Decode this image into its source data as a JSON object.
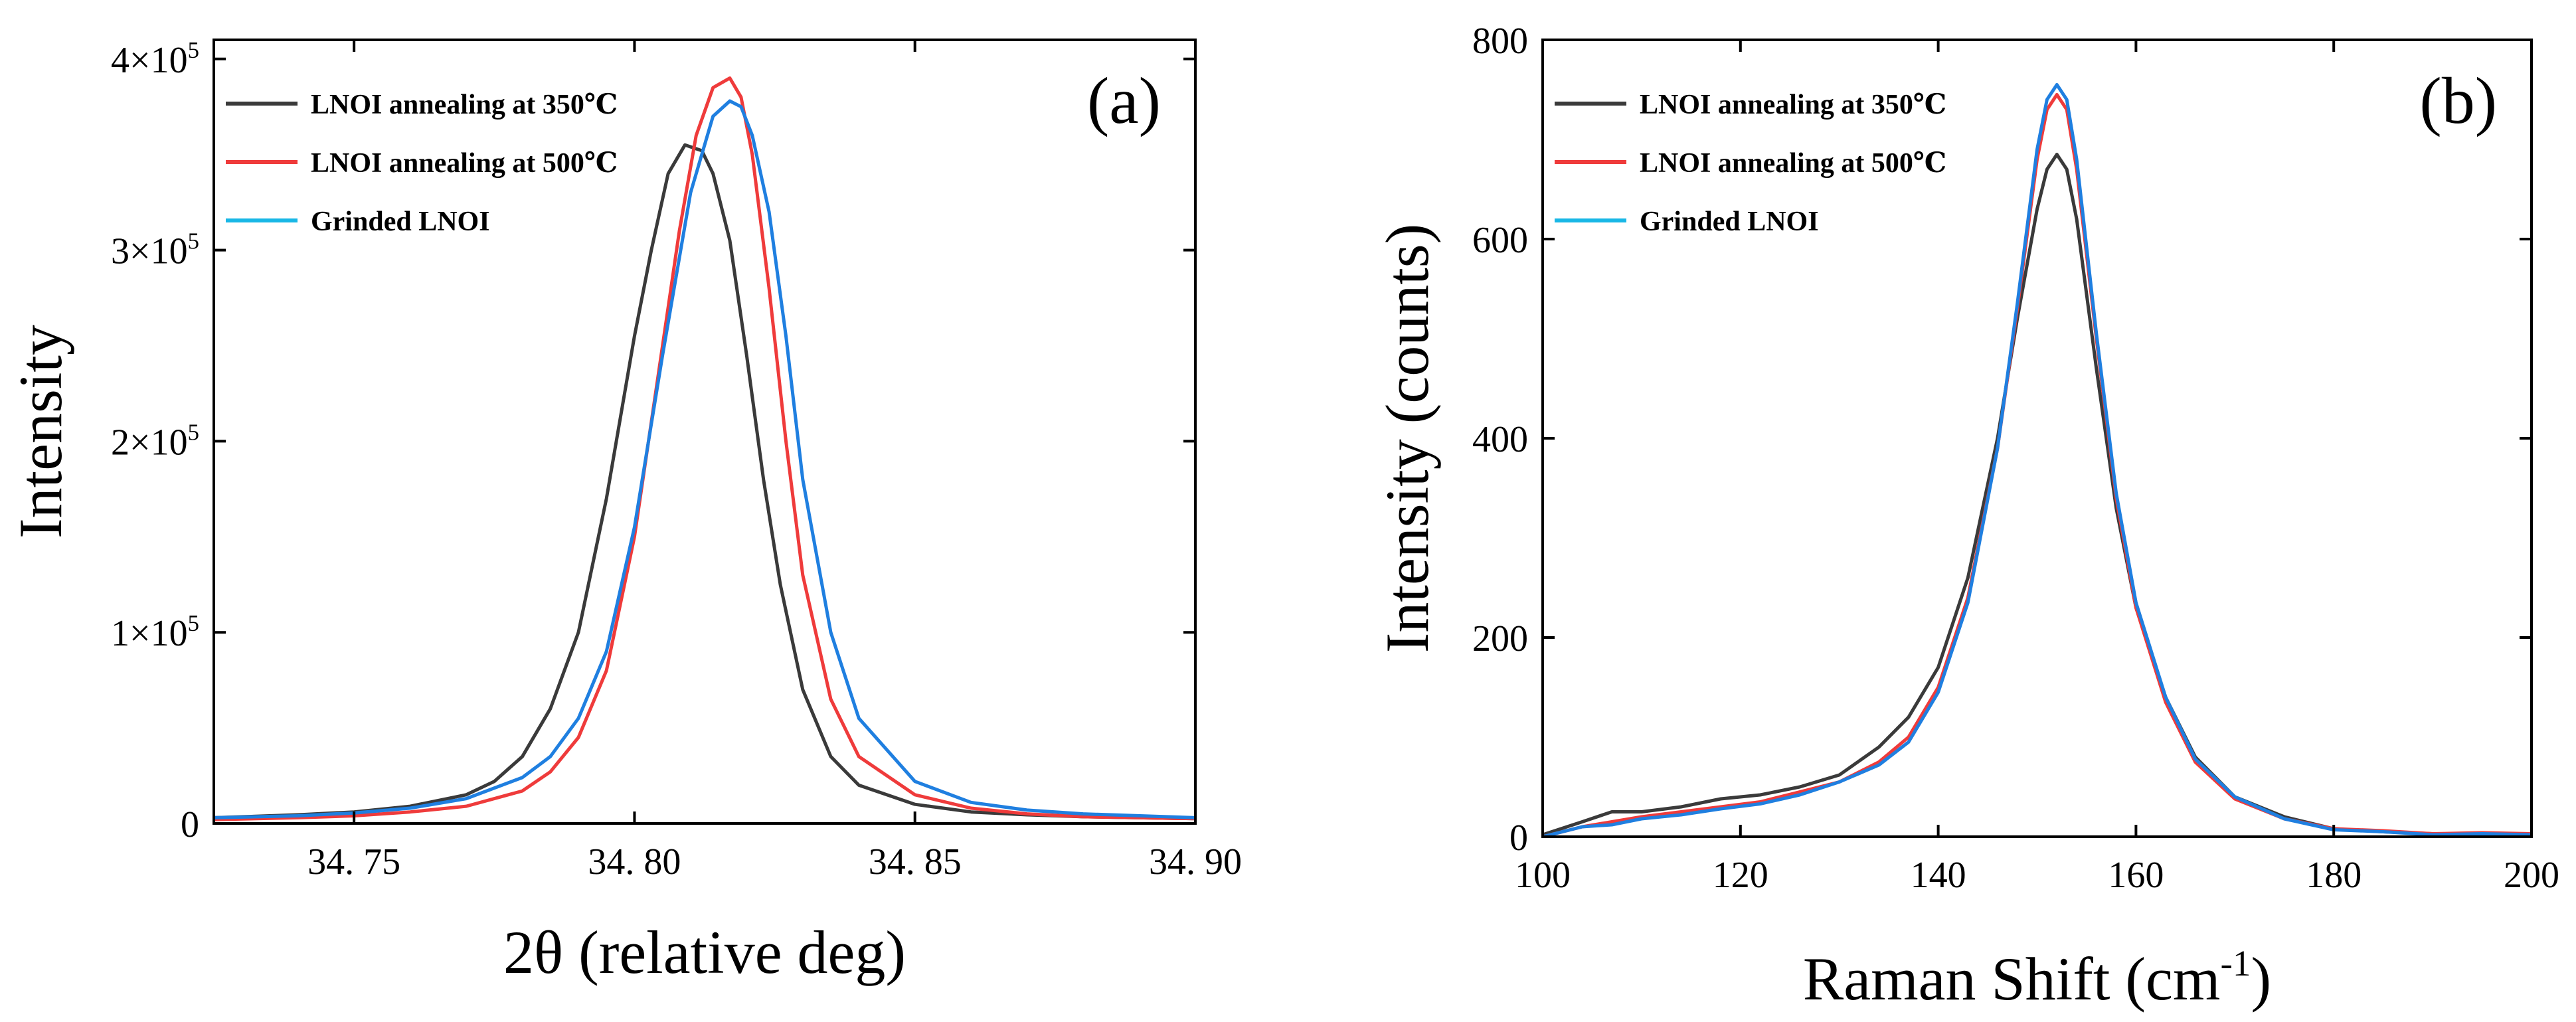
{
  "colors": {
    "series_350": "#3a3a3a",
    "series_500": "#ef3b3b",
    "series_grinded": "#1f7fe0",
    "legend_grinded": "#18b7e6",
    "axis": "#000000"
  },
  "chart_data": [
    {
      "type": "line",
      "panel_label": "(a)",
      "title": "",
      "xlabel": "2θ (relative deg)",
      "ylabel": "Intensity",
      "xlim": [
        34.725,
        34.9
      ],
      "ylim": [
        0,
        410000
      ],
      "x_ticks": [
        34.75,
        34.8,
        34.85,
        34.9
      ],
      "x_tick_labels": [
        "34. 75",
        "34. 80",
        "34. 85",
        "34. 90"
      ],
      "y_ticks": [
        0,
        100000,
        200000,
        300000,
        400000
      ],
      "y_tick_mantissa": [
        "0",
        "1",
        "2",
        "3",
        "4"
      ],
      "y_tick_times": "×10",
      "y_tick_exponent": "5",
      "grid": false,
      "legend_position": "top-left",
      "series": [
        {
          "name": "LNOI annealing at 350℃",
          "color_key": "series_350",
          "x": [
            34.725,
            34.74,
            34.75,
            34.76,
            34.77,
            34.775,
            34.78,
            34.785,
            34.79,
            34.795,
            34.8,
            34.803,
            34.806,
            34.809,
            34.812,
            34.814,
            34.817,
            34.82,
            34.823,
            34.826,
            34.83,
            34.835,
            34.84,
            34.85,
            34.86,
            34.87,
            34.88,
            34.9
          ],
          "y": [
            3000,
            4500,
            6000,
            9000,
            15000,
            22000,
            35000,
            60000,
            100000,
            170000,
            255000,
            300000,
            340000,
            355000,
            352000,
            340000,
            305000,
            245000,
            180000,
            125000,
            70000,
            35000,
            20000,
            10000,
            6000,
            4500,
            3500,
            2500
          ]
        },
        {
          "name": "LNOI annealing at 500℃",
          "color_key": "series_500",
          "x": [
            34.725,
            34.74,
            34.75,
            34.76,
            34.77,
            34.78,
            34.785,
            34.79,
            34.795,
            34.8,
            34.805,
            34.808,
            34.811,
            34.814,
            34.817,
            34.819,
            34.821,
            34.824,
            34.827,
            34.83,
            34.835,
            34.84,
            34.85,
            34.86,
            34.87,
            34.88,
            34.9
          ],
          "y": [
            2000,
            3000,
            4000,
            6000,
            9000,
            17000,
            27000,
            45000,
            80000,
            150000,
            250000,
            310000,
            360000,
            385000,
            390000,
            380000,
            350000,
            280000,
            200000,
            130000,
            65000,
            35000,
            15000,
            8000,
            5000,
            3500,
            2500
          ]
        },
        {
          "name": "Grinded LNOI",
          "color_key": "series_grinded",
          "legend_color_key": "legend_grinded",
          "x": [
            34.725,
            34.74,
            34.75,
            34.76,
            34.77,
            34.78,
            34.785,
            34.79,
            34.795,
            34.8,
            34.805,
            34.81,
            34.814,
            34.817,
            34.819,
            34.821,
            34.824,
            34.827,
            34.83,
            34.835,
            34.84,
            34.85,
            34.86,
            34.87,
            34.88,
            34.9
          ],
          "y": [
            3000,
            4000,
            5500,
            8000,
            13000,
            24000,
            35000,
            55000,
            90000,
            155000,
            245000,
            330000,
            370000,
            378000,
            375000,
            360000,
            320000,
            255000,
            180000,
            100000,
            55000,
            22000,
            11000,
            7000,
            5000,
            3000
          ]
        }
      ]
    },
    {
      "type": "line",
      "panel_label": "(b)",
      "title": "",
      "xlabel": "Raman Shift (cm",
      "xlabel_superscript": "-1",
      "xlabel_suffix": ")",
      "ylabel": "Intensity (counts)",
      "xlim": [
        100,
        200
      ],
      "ylim": [
        0,
        800
      ],
      "x_ticks": [
        100,
        120,
        140,
        160,
        180,
        200
      ],
      "x_tick_labels": [
        "100",
        "120",
        "140",
        "160",
        "180",
        "200"
      ],
      "y_ticks": [
        0,
        200,
        400,
        600,
        800
      ],
      "y_tick_labels": [
        "0",
        "200",
        "400",
        "600",
        "800"
      ],
      "grid": false,
      "legend_position": "top-left",
      "series": [
        {
          "name": "LNOI annealing at 350℃",
          "color_key": "series_350",
          "x": [
            100,
            104,
            107,
            110,
            114,
            118,
            122,
            126,
            130,
            134,
            137,
            140,
            143,
            146,
            148,
            150,
            151,
            152,
            153,
            154,
            156,
            158,
            160,
            163,
            166,
            170,
            175,
            180,
            185,
            190,
            195,
            200
          ],
          "y": [
            2,
            15,
            25,
            25,
            30,
            38,
            42,
            50,
            62,
            90,
            120,
            170,
            260,
            400,
            520,
            630,
            670,
            685,
            670,
            620,
            470,
            330,
            230,
            140,
            80,
            40,
            20,
            8,
            5,
            3,
            3,
            2
          ]
        },
        {
          "name": "LNOI annealing at 500℃",
          "color_key": "series_500",
          "x": [
            100,
            104,
            107,
            110,
            114,
            118,
            122,
            126,
            130,
            134,
            137,
            140,
            143,
            146,
            148,
            150,
            151,
            152,
            153,
            154,
            156,
            158,
            160,
            163,
            166,
            170,
            175,
            180,
            185,
            190,
            195,
            200
          ],
          "y": [
            0,
            10,
            15,
            20,
            25,
            30,
            35,
            45,
            55,
            75,
            100,
            150,
            240,
            390,
            530,
            680,
            730,
            745,
            730,
            670,
            500,
            340,
            230,
            135,
            75,
            38,
            18,
            8,
            6,
            3,
            4,
            3
          ]
        },
        {
          "name": "Grinded LNOI",
          "color_key": "series_grinded",
          "legend_color_key": "legend_grinded",
          "x": [
            100,
            104,
            107,
            110,
            114,
            118,
            122,
            126,
            130,
            134,
            137,
            140,
            143,
            146,
            148,
            150,
            151,
            152,
            153,
            154,
            156,
            158,
            160,
            163,
            166,
            170,
            175,
            180,
            185,
            190,
            195,
            200
          ],
          "y": [
            0,
            10,
            12,
            18,
            22,
            28,
            33,
            42,
            55,
            72,
            95,
            145,
            235,
            390,
            535,
            690,
            740,
            755,
            740,
            680,
            505,
            345,
            235,
            140,
            78,
            40,
            18,
            7,
            5,
            2,
            3,
            2
          ]
        }
      ]
    }
  ]
}
